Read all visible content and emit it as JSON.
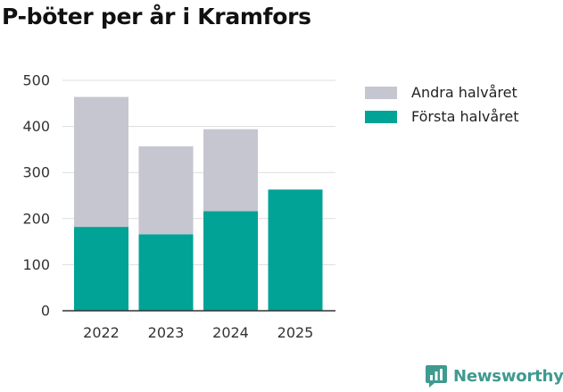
{
  "chart_data": {
    "type": "bar",
    "stacked": true,
    "title": "P-böter per år i Kramfors",
    "categories": [
      "2022",
      "2023",
      "2024",
      "2025"
    ],
    "series": [
      {
        "name": "Första halvåret",
        "values": [
          182,
          166,
          216,
          263
        ],
        "color": "#00a396"
      },
      {
        "name": "Andra halvåret",
        "values": [
          282,
          191,
          178,
          0
        ],
        "color": "#c6c6d0"
      }
    ],
    "ylim": [
      0,
      500
    ],
    "yticks": [
      0,
      100,
      200,
      300,
      400,
      500
    ],
    "grid": true,
    "legend_position": "right"
  },
  "legend": [
    {
      "label": "Andra halvåret",
      "color": "#c6c6d0"
    },
    {
      "label": "Första halvåret",
      "color": "#00a396"
    }
  ],
  "brand": {
    "name": "Newsworthy",
    "color": "#3f9a8f",
    "icon": "newsworthy-logo-icon"
  }
}
